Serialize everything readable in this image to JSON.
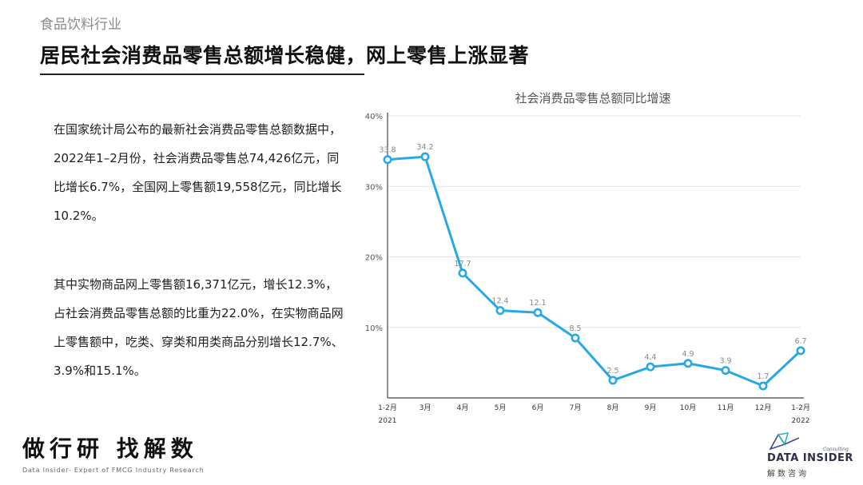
{
  "header": {
    "industry": "食品饮料行业",
    "headline": "居民社会消费品零售总额增长稳健，网上零售上涨显著"
  },
  "body": {
    "para1": "在国家统计局公布的最新社会消费品零售总额数据中，2022年1–2月份，社会消费品零售总74,426亿元，同比增长6.7%，全国网上零售额19,558亿元，同比增长10.2%。",
    "para2": "其中实物商品网上零售额16,371亿元，增长12.3%，占社会消费品零售总额的比重为22.0%，在实物商品网上零售额中，吃类、穿类和用类商品分别增长12.7%、3.9%和15.1%。"
  },
  "chart_data": {
    "type": "line",
    "title": "社会消费品零售总额同比增速",
    "categories": [
      "1-2月",
      "3月",
      "4月",
      "5月",
      "6月",
      "7月",
      "8月",
      "9月",
      "10月",
      "11月",
      "12月",
      "1-2月"
    ],
    "year_labels": [
      {
        "index": 0,
        "label": "2021"
      },
      {
        "index": 11,
        "label": "2022"
      }
    ],
    "series": [
      {
        "values": [
          33.8,
          34.2,
          17.7,
          12.4,
          12.1,
          8.5,
          2.5,
          4.4,
          4.9,
          3.9,
          1.7,
          6.7
        ]
      }
    ],
    "yticks": [
      0,
      10,
      20,
      30,
      40
    ],
    "ytick_labels": [
      "",
      "10%",
      "20%",
      "30%",
      "40%"
    ],
    "ylim": [
      0,
      40
    ],
    "grid": true,
    "line_color": "#29a8e8",
    "label_color": "#8a8a8a"
  },
  "footer": {
    "slogan": "做行研 找解数",
    "slogan_sub": "Data Insider- Expert of FMCG Industry Research",
    "logo_tag": "Consulting",
    "logo_main": "DATA INSIDER",
    "logo_cn": "解数咨询"
  }
}
